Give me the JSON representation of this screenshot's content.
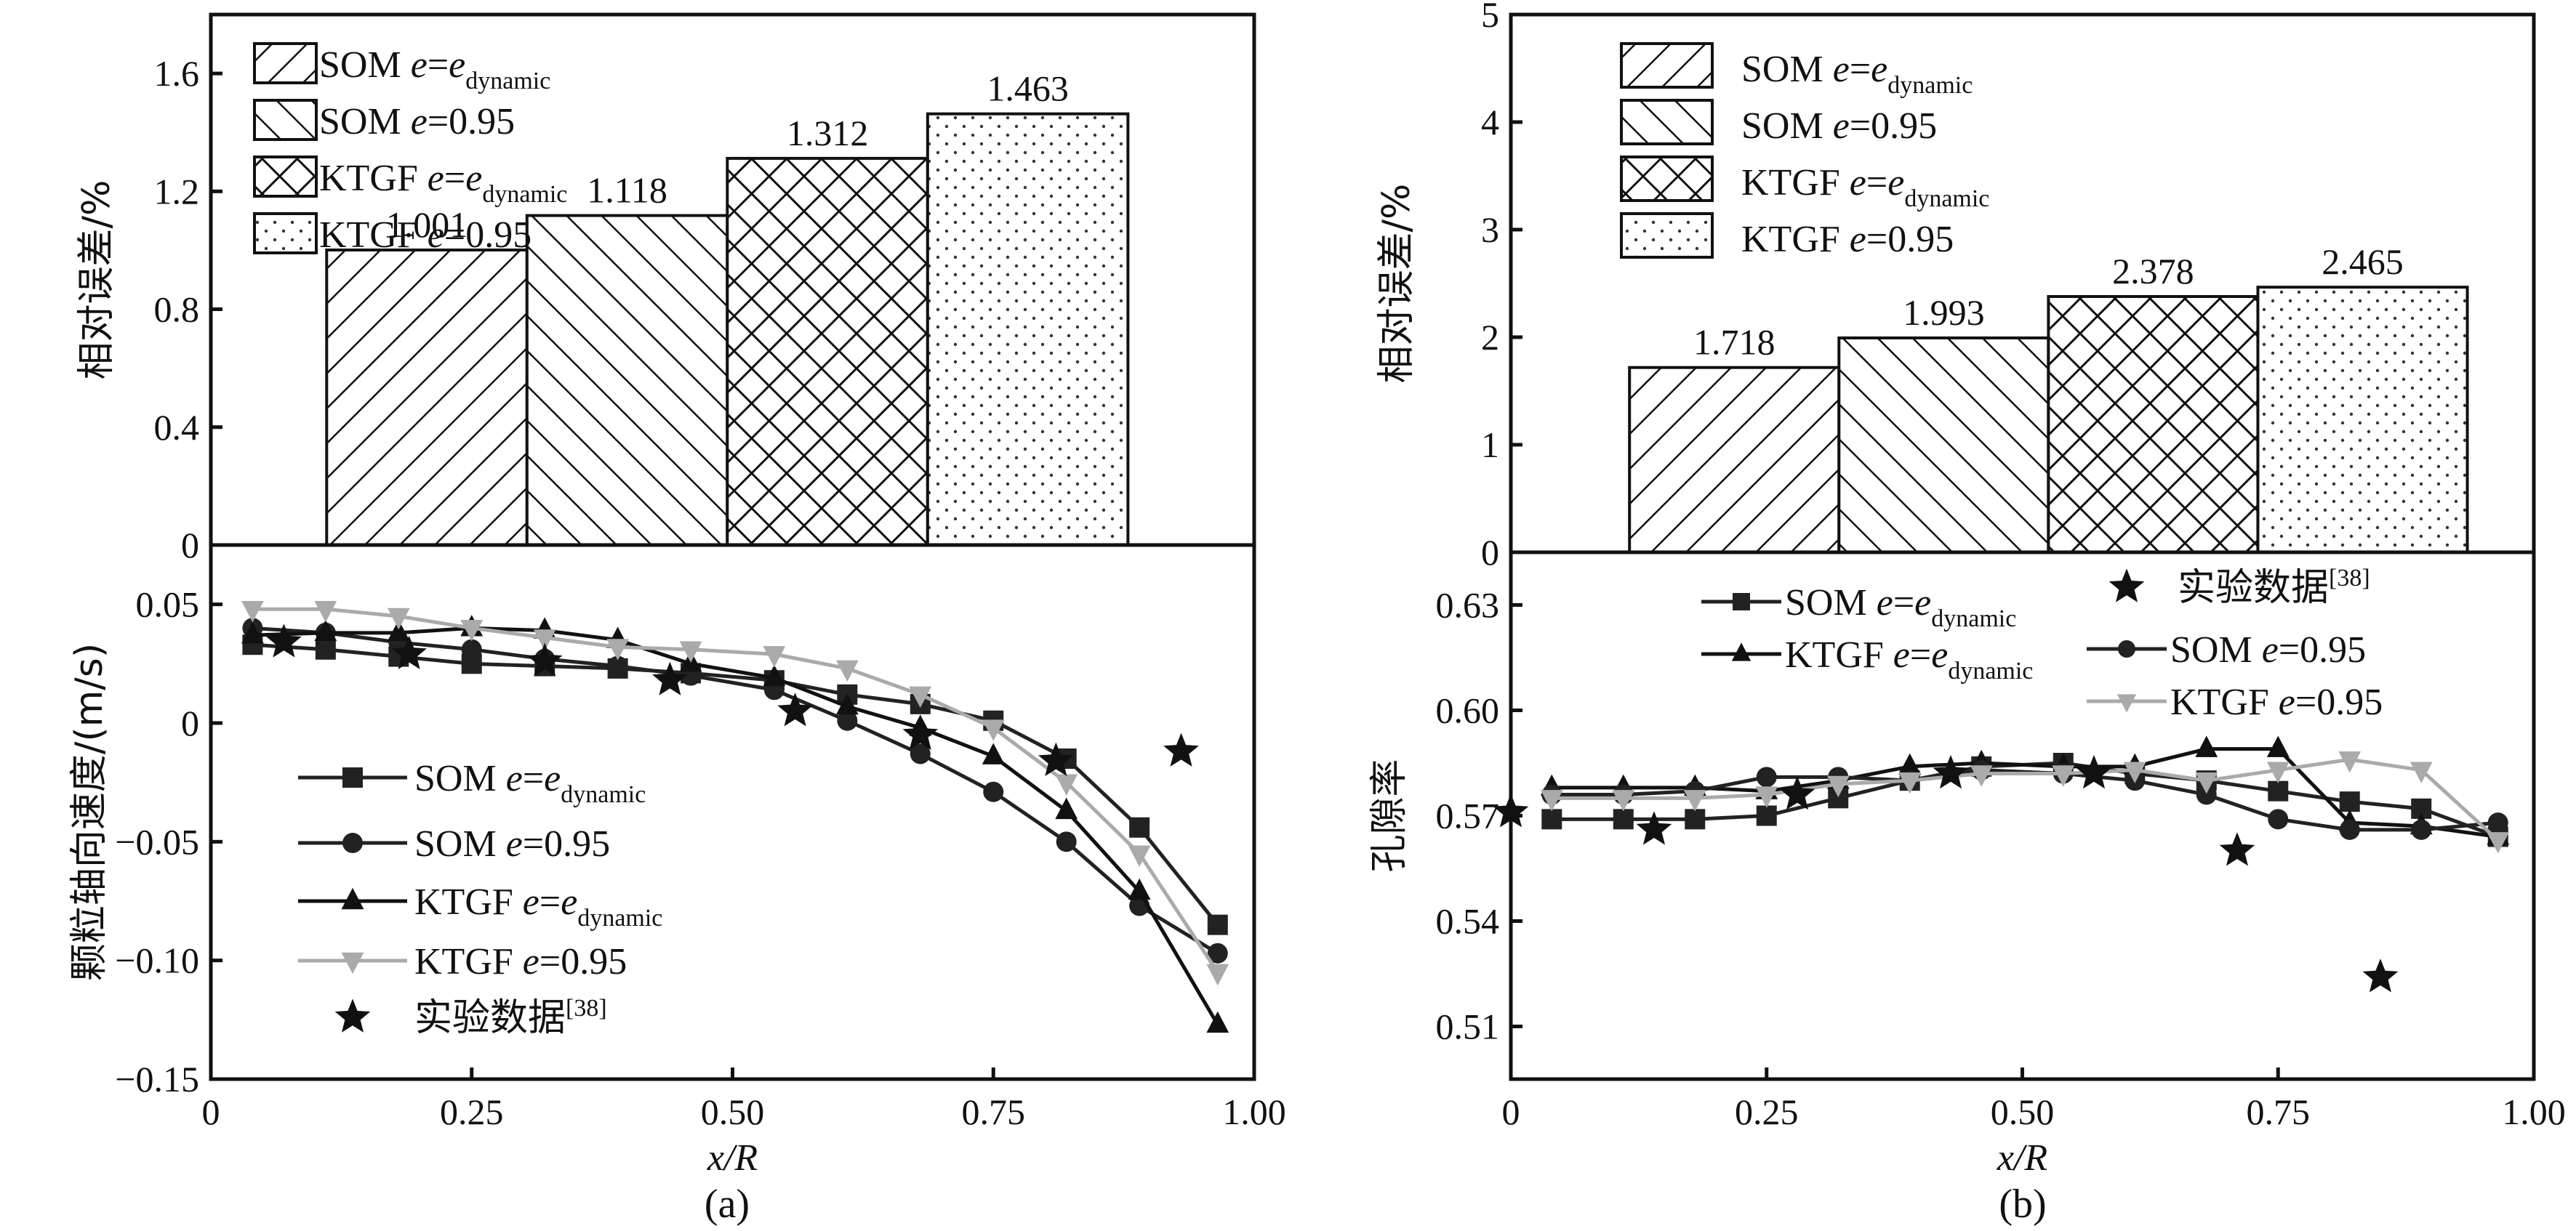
{
  "chart_data": [
    {
      "id": "a-top",
      "type": "bar",
      "panel": "(a)",
      "ylabel": "相对误差/%",
      "ylim": [
        0,
        1.8
      ],
      "yticks": [
        0,
        0.4,
        0.8,
        1.2,
        1.6
      ],
      "ytick_labels": [
        "0",
        "0.4",
        "0.8",
        "1.2",
        "1.6"
      ],
      "categories": [
        "SOM e=e_dynamic",
        "SOM e=0.95",
        "KTGF e=e_dynamic",
        "KTGF e=0.95"
      ],
      "values": [
        1.001,
        1.118,
        1.312,
        1.463
      ],
      "value_labels": [
        "1.001",
        "1.118",
        "1.312",
        "1.463"
      ],
      "patterns": [
        "forward-hatch",
        "back-hatch",
        "cross-hatch",
        "dots"
      ],
      "legend": [
        {
          "main": "SOM ",
          "ital": "e",
          "eq": "=",
          "ital2": "e",
          "sub": "dynamic",
          "tail": ""
        },
        {
          "main": "SOM ",
          "ital": "e",
          "eq": "=0.95",
          "ital2": "",
          "sub": "",
          "tail": ""
        },
        {
          "main": "KTGF ",
          "ital": "e",
          "eq": "=",
          "ital2": "e",
          "sub": "dynamic",
          "tail": ""
        },
        {
          "main": "KTGF ",
          "ital": "e",
          "eq": "=0.95",
          "ital2": "",
          "sub": "",
          "tail": ""
        }
      ],
      "legend_position": "top-left"
    },
    {
      "id": "a-bottom",
      "type": "line",
      "panel": "(a)",
      "xlabel": "x/R",
      "ylabel": "颗粒轴向速度/(m/s)",
      "xlim": [
        0,
        1.0
      ],
      "ylim": [
        -0.15,
        0.075
      ],
      "xticks": [
        0,
        0.25,
        0.5,
        0.75,
        1.0
      ],
      "xtick_labels": [
        "0",
        "0.25",
        "0.50",
        "0.75",
        "1.00"
      ],
      "yticks": [
        -0.15,
        -0.1,
        -0.05,
        0,
        0.05
      ],
      "ytick_labels": [
        "−0.15",
        "−0.10",
        "−0.05",
        "0",
        "0.05"
      ],
      "x": [
        0.04,
        0.11,
        0.18,
        0.25,
        0.32,
        0.39,
        0.46,
        0.54,
        0.61,
        0.68,
        0.75,
        0.82,
        0.89,
        0.965
      ],
      "series": [
        {
          "name": "SOM e=e_dynamic",
          "marker": "square",
          "color": "#222222",
          "values": [
            0.033,
            0.031,
            0.028,
            0.025,
            0.024,
            0.023,
            0.021,
            0.018,
            0.012,
            0.008,
            0.001,
            -0.015,
            -0.044,
            -0.085
          ]
        },
        {
          "name": "SOM e=0.95",
          "marker": "circle",
          "color": "#222222",
          "values": [
            0.04,
            0.038,
            0.034,
            0.031,
            0.027,
            0.024,
            0.02,
            0.014,
            0.001,
            -0.013,
            -0.029,
            -0.05,
            -0.077,
            -0.097
          ]
        },
        {
          "name": "KTGF e=e_dynamic",
          "marker": "triangle-up",
          "color": "#111111",
          "values": [
            0.037,
            0.038,
            0.038,
            0.04,
            0.039,
            0.035,
            0.025,
            0.019,
            0.007,
            -0.002,
            -0.014,
            -0.037,
            -0.071,
            -0.127
          ]
        },
        {
          "name": "KTGF e=0.95",
          "marker": "triangle-down",
          "color": "#aaaaaa",
          "values": [
            0.048,
            0.048,
            0.045,
            0.04,
            0.036,
            0.032,
            0.031,
            0.029,
            0.023,
            0.012,
            -0.002,
            -0.025,
            -0.055,
            -0.105
          ]
        }
      ],
      "scatter": {
        "name": "实验数据[38]",
        "marker": "star",
        "color": "#111111",
        "points": [
          [
            0.07,
            0.034
          ],
          [
            0.19,
            0.029
          ],
          [
            0.32,
            0.026
          ],
          [
            0.44,
            0.018
          ],
          [
            0.56,
            0.005
          ],
          [
            0.68,
            -0.005
          ],
          [
            0.81,
            -0.016
          ],
          [
            0.93,
            -0.012
          ]
        ]
      },
      "legend": [
        {
          "main": "SOM ",
          "ital": "e",
          "eq": "=",
          "ital2": "e",
          "sub": "dynamic"
        },
        {
          "main": "SOM ",
          "ital": "e",
          "eq": "=0.95",
          "ital2": "",
          "sub": ""
        },
        {
          "main": "KTGF ",
          "ital": "e",
          "eq": "=",
          "ital2": "e",
          "sub": "dynamic"
        },
        {
          "main": "KTGF ",
          "ital": "e",
          "eq": "=0.95",
          "ital2": "",
          "sub": ""
        },
        {
          "main": "实验数据",
          "sup": "[38]"
        }
      ],
      "legend_position": "bottom-left"
    },
    {
      "id": "b-top",
      "type": "bar",
      "panel": "(b)",
      "ylabel": "相对误差/%",
      "ylim": [
        0,
        5
      ],
      "yticks": [
        0,
        1,
        2,
        3,
        4,
        5
      ],
      "ytick_labels": [
        "0",
        "1",
        "2",
        "3",
        "4",
        "5"
      ],
      "categories": [
        "SOM e=e_dynamic",
        "SOM e=0.95",
        "KTGF e=e_dynamic",
        "KTGF e=0.95"
      ],
      "values": [
        1.718,
        1.993,
        2.378,
        2.465
      ],
      "value_labels": [
        "1.718",
        "1.993",
        "2.378",
        "2.465"
      ],
      "patterns": [
        "forward-hatch",
        "back-hatch",
        "cross-hatch",
        "dots"
      ],
      "legend": [
        {
          "main": "SOM ",
          "ital": "e",
          "eq": "=",
          "ital2": "e",
          "sub": "dynamic"
        },
        {
          "main": "SOM ",
          "ital": "e",
          "eq": "=0.95",
          "ital2": "",
          "sub": ""
        },
        {
          "main": "KTGF ",
          "ital": "e",
          "eq": "=",
          "ital2": "e",
          "sub": "dynamic"
        },
        {
          "main": "KTGF ",
          "ital": "e",
          "eq": "=0.95",
          "ital2": "",
          "sub": ""
        }
      ],
      "legend_position": "top-left"
    },
    {
      "id": "b-bottom",
      "type": "line",
      "panel": "(b)",
      "xlabel": "x/R",
      "ylabel": "孔隙率",
      "xlim": [
        0,
        1.0
      ],
      "ylim": [
        0.495,
        0.645
      ],
      "xticks": [
        0,
        0.25,
        0.5,
        0.75,
        1.0
      ],
      "xtick_labels": [
        "0",
        "0.25",
        "0.50",
        "0.75",
        "1.00"
      ],
      "yticks": [
        0.51,
        0.54,
        0.57,
        0.6,
        0.63
      ],
      "ytick_labels": [
        "0.51",
        "0.54",
        "0.57",
        "0.60",
        "0.63"
      ],
      "x": [
        0.04,
        0.11,
        0.18,
        0.25,
        0.32,
        0.39,
        0.46,
        0.54,
        0.61,
        0.68,
        0.75,
        0.82,
        0.89,
        0.965
      ],
      "series": [
        {
          "name": "SOM e=e_dynamic",
          "marker": "square",
          "color": "#222222",
          "values": [
            0.569,
            0.569,
            0.569,
            0.57,
            0.575,
            0.58,
            0.584,
            0.585,
            0.582,
            0.58,
            0.577,
            0.574,
            0.572,
            0.564
          ]
        },
        {
          "name": "KTGF e=e_dynamic",
          "marker": "triangle-up",
          "color": "#111111",
          "values": [
            0.578,
            0.578,
            0.578,
            0.577,
            0.58,
            0.584,
            0.585,
            0.584,
            0.584,
            0.589,
            0.589,
            0.568,
            0.567,
            0.564
          ]
        },
        {
          "name": "SOM e=0.95",
          "marker": "circle",
          "color": "#222222",
          "values": [
            0.576,
            0.576,
            0.577,
            0.581,
            0.581,
            0.58,
            0.583,
            0.582,
            0.58,
            0.576,
            0.569,
            0.566,
            0.566,
            0.568
          ]
        },
        {
          "name": "KTGF e=0.95",
          "marker": "triangle-down",
          "color": "#aaaaaa",
          "values": [
            0.575,
            0.575,
            0.575,
            0.576,
            0.579,
            0.58,
            0.582,
            0.582,
            0.583,
            0.58,
            0.583,
            0.586,
            0.583,
            0.563
          ]
        }
      ],
      "scatter": {
        "name": "实验数据[38]",
        "marker": "star",
        "color": "#111111",
        "points": [
          [
            0.0,
            0.571
          ],
          [
            0.14,
            0.566
          ],
          [
            0.28,
            0.576
          ],
          [
            0.43,
            0.582
          ],
          [
            0.57,
            0.582
          ],
          [
            0.71,
            0.56
          ],
          [
            0.85,
            0.524
          ]
        ]
      },
      "legend": [
        {
          "main": "SOM ",
          "ital": "e",
          "eq": "=",
          "ital2": "e",
          "sub": "dynamic"
        },
        {
          "main": "KTGF ",
          "ital": "e",
          "eq": "=",
          "ital2": "e",
          "sub": "dynamic"
        },
        {
          "main": "实验数据",
          "sup": "[38]"
        },
        {
          "main": "SOM ",
          "ital": "e",
          "eq": "=0.95",
          "ital2": "",
          "sub": ""
        },
        {
          "main": "KTGF ",
          "ital": "e",
          "eq": "=0.95",
          "ital2": "",
          "sub": ""
        }
      ],
      "legend_position": "top"
    }
  ],
  "captions": {
    "a": "(a)",
    "b": "(b)"
  },
  "axis_title_x_main": "x",
  "axis_title_x_rest": "/R"
}
